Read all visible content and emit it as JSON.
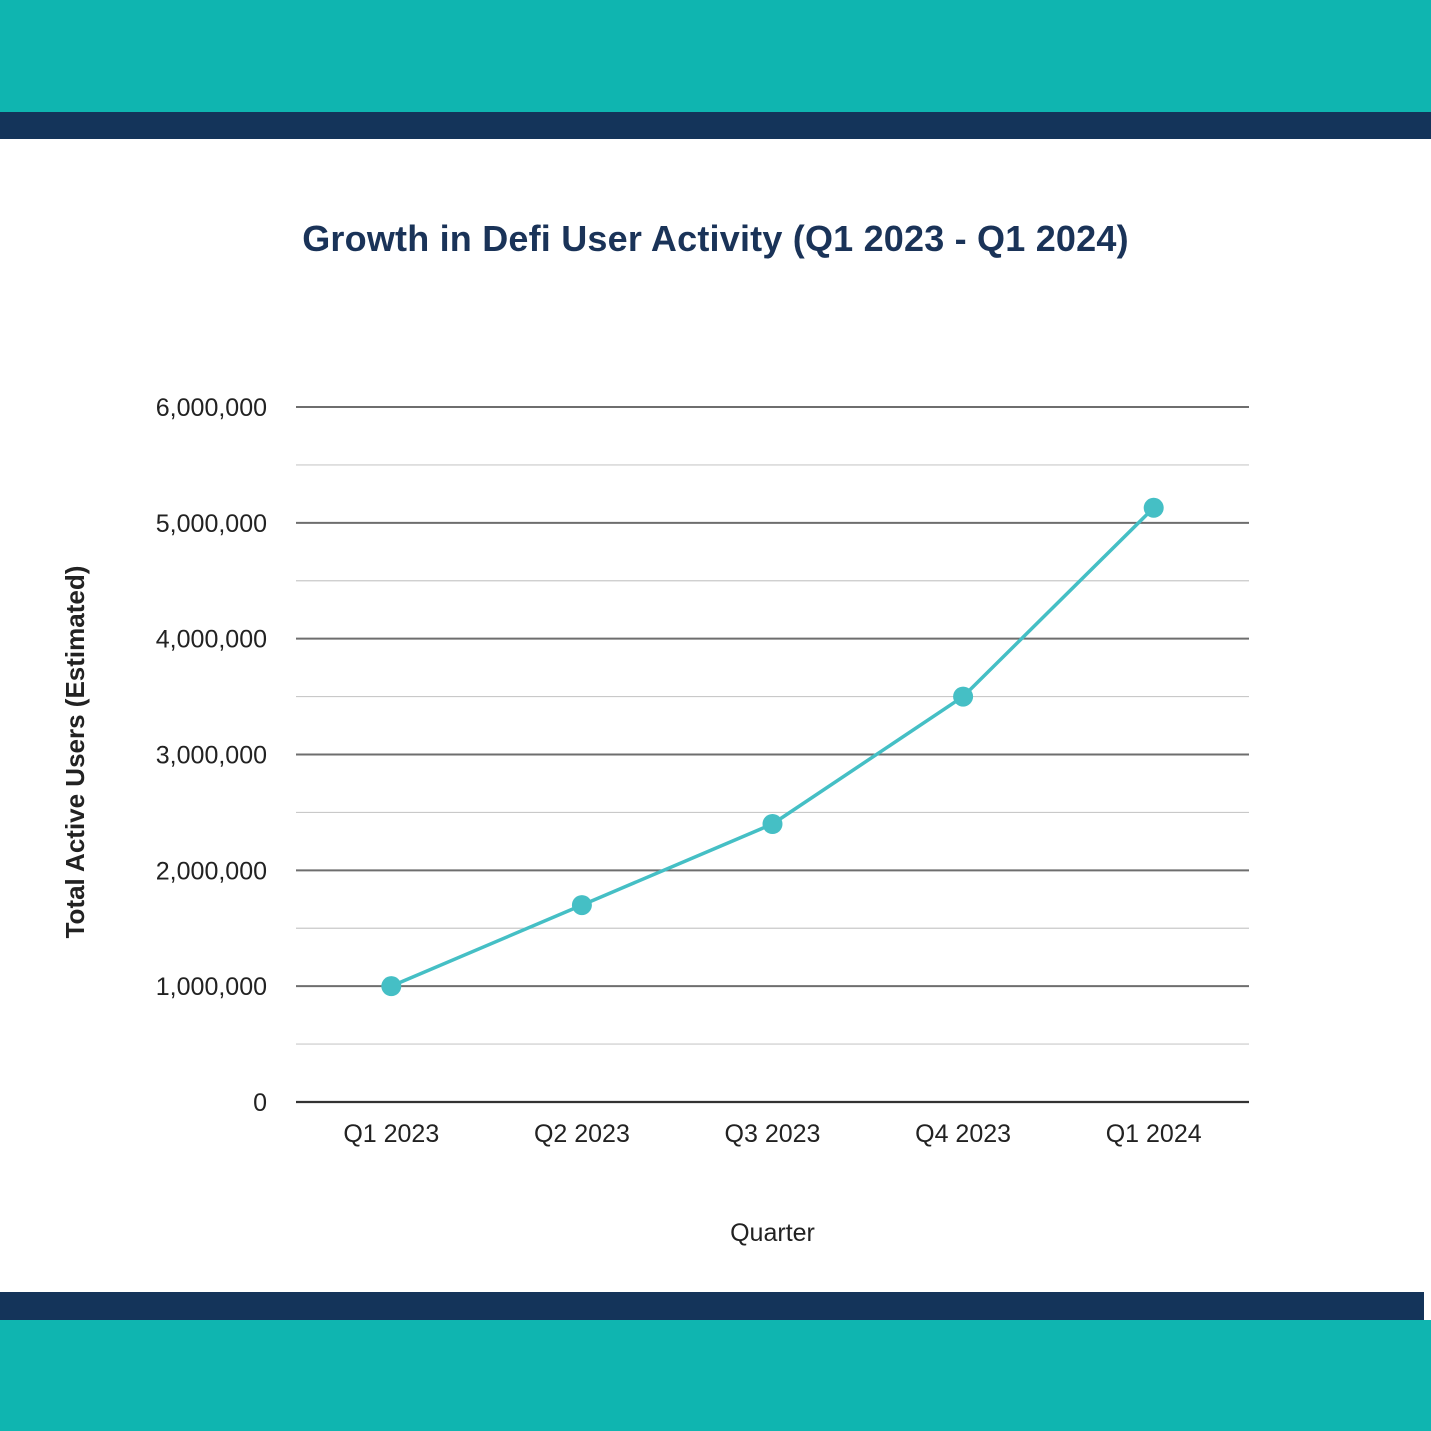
{
  "colors": {
    "teal_band": "#0fb5b0",
    "navy_band": "#14345a",
    "title": "#1a3358",
    "series_line": "#45bfc5",
    "major_grid": "#6e6e6e",
    "minor_grid": "#c9c9c9",
    "axis": "#333333",
    "tick_text": "#222222"
  },
  "chart_data": {
    "type": "line",
    "title": "Growth in Defi User Activity (Q1 2023 - Q1 2024)",
    "xlabel": "Quarter",
    "ylabel": "Total Active Users (Estimated)",
    "categories": [
      "Q1 2023",
      "Q2 2023",
      "Q3 2023",
      "Q4 2023",
      "Q1 2024"
    ],
    "series": [
      {
        "values": [
          1000000,
          1700000,
          2400000,
          3500000,
          5130000
        ]
      }
    ],
    "ylim": [
      0,
      6000000
    ],
    "y_ticks": [
      0,
      1000000,
      2000000,
      3000000,
      4000000,
      5000000,
      6000000
    ],
    "y_tick_labels": [
      "0",
      "1,000,000",
      "2,000,000",
      "3,000,000",
      "4,000,000",
      "5,000,000",
      "6,000,000"
    ],
    "minor_grid_step": 500000,
    "grid": true,
    "legend": "none"
  }
}
